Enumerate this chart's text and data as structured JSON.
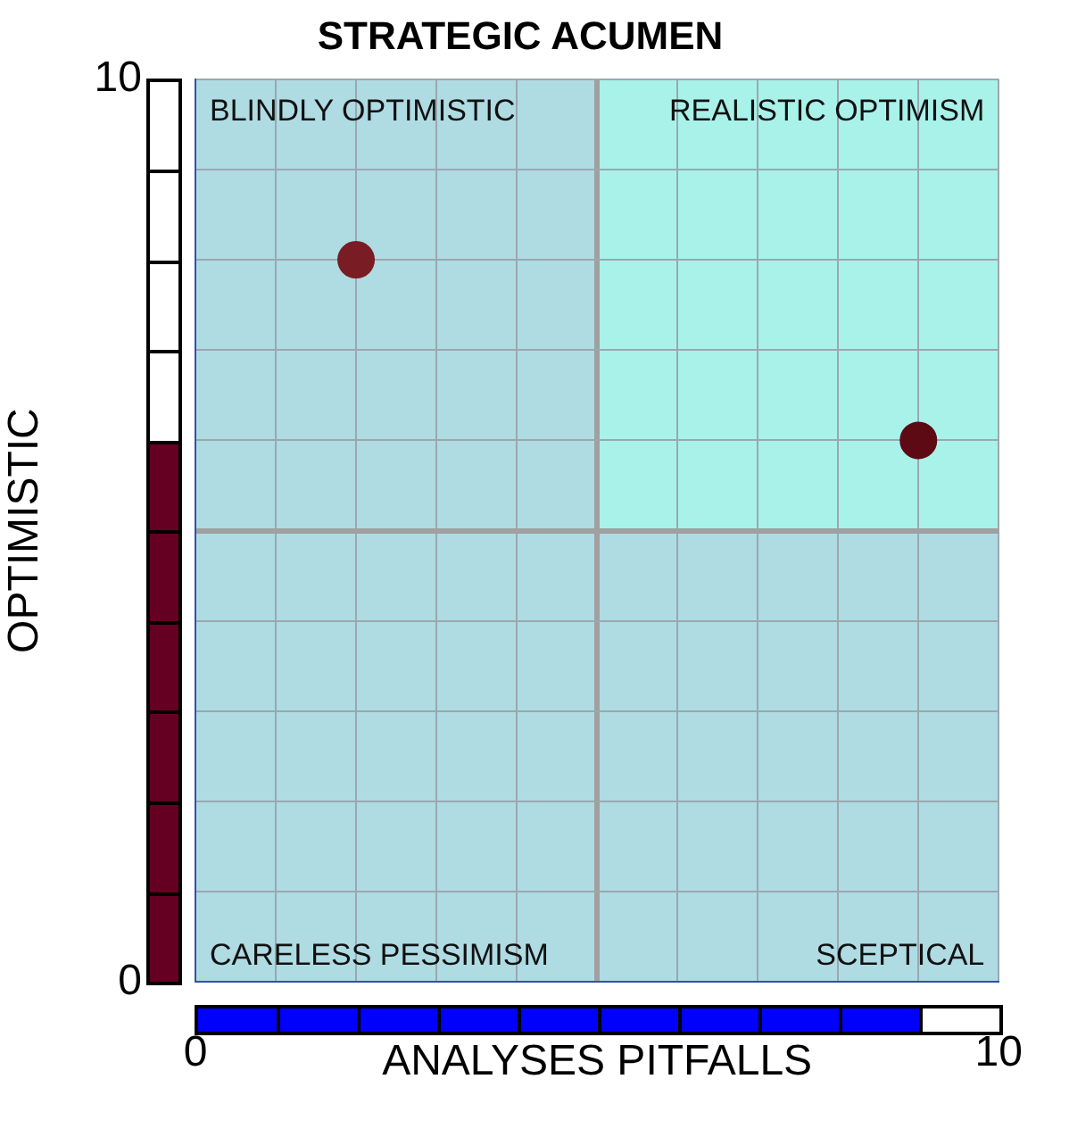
{
  "chart_data": {
    "type": "scatter",
    "title": "STRATEGIC ACUMEN",
    "xlabel": "ANALYSES PITFALLS",
    "ylabel": "OPTIMISTIC",
    "series": [
      {
        "x": [
          2
        ],
        "values": [
          8
        ],
        "color": "#7a1c24"
      },
      {
        "x": [
          9
        ],
        "values": [
          6
        ],
        "color": "#5e0a14"
      }
    ],
    "xlim": [
      0,
      10
    ],
    "ylim": [
      0,
      10
    ],
    "xticks": [
      0,
      {
        "value": 1,
        "label": null
      },
      {
        "value": 2,
        "label": null
      },
      {
        "value": 3,
        "label": null
      },
      {
        "value": 4,
        "label": null
      },
      {
        "value": 5,
        "label": null
      },
      {
        "value": 6,
        "label": null
      },
      {
        "value": 7,
        "label": null
      },
      {
        "value": 8,
        "label": null
      },
      {
        "value": 9,
        "label": null
      },
      10
    ],
    "yticks": [
      0,
      {
        "value": 1,
        "label": null
      },
      {
        "value": 2,
        "label": null
      },
      {
        "value": 3,
        "label": null
      },
      {
        "value": 4,
        "label": null
      },
      {
        "value": 5,
        "label": null
      },
      {
        "value": 6,
        "label": null
      },
      {
        "value": 7,
        "label": null
      },
      {
        "value": 8,
        "label": null
      },
      {
        "value": 9,
        "label": null
      },
      10
    ],
    "grid": true,
    "legend": false,
    "marker": "circle",
    "annotations": [
      "BLINDLY OPTIMISTIC",
      "REALISTIC OPTIMISM",
      "CARELESS PESSIMISM",
      "SCEPTICAL"
    ]
  }
}
